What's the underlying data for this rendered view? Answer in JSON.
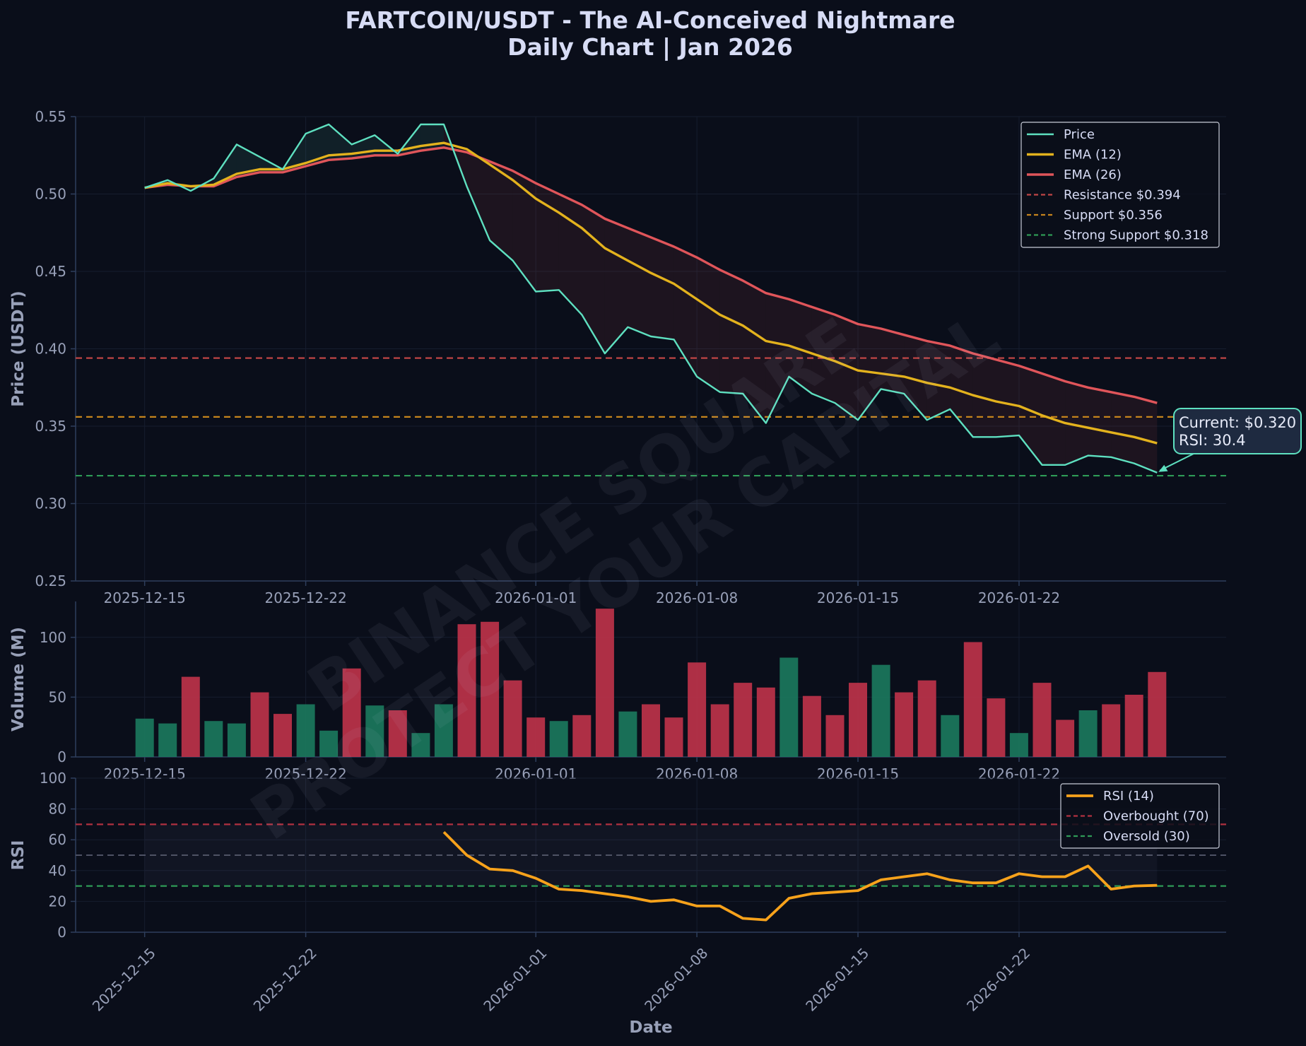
{
  "title_line1": "FARTCOIN/USDT - The AI-Conceived Nightmare",
  "title_line2": "Daily Chart | Jan 2026",
  "watermark_line1": "BINANCE SQUARE",
  "watermark_line2": "PROTECT YOUR CAPITAL",
  "colors": {
    "background": "#0a0e1a",
    "axis": "#2e3e5c",
    "grid": "#161d2e",
    "text": "#d7dcf5",
    "tick": "#98a0b8",
    "price": "#5ee0c0",
    "ema12": "#e3b21d",
    "ema26": "#e0555a",
    "resistance": "#c04545",
    "support": "#c5841c",
    "strong_support": "#2e9a56",
    "volume_up": "#1b7a5e",
    "volume_down": "#c0334a",
    "rsi": "#f7a21b",
    "overbought": "#b03040",
    "oversold": "#2e9a56",
    "midline": "#4e5264",
    "annotation_bg": "#1e2a40"
  },
  "chart_data": [
    {
      "type": "line",
      "panel": "price",
      "ylabel": "Price (USDT)",
      "ylim": [
        0.25,
        0.55
      ],
      "yticks": [
        0.25,
        0.3,
        0.35,
        0.4,
        0.45,
        0.5,
        0.55
      ],
      "ytick_labels": [
        "0.25",
        "0.30",
        "0.35",
        "0.40",
        "0.45",
        "0.50",
        "0.55"
      ],
      "x_start": "2025-12-15",
      "x_end": "2026-01-28",
      "xlim": [
        "2025-12-12",
        "2026-01-31"
      ],
      "xticks": [
        "2025-12-15",
        "2025-12-22",
        "2026-01-01",
        "2026-01-08",
        "2026-01-15",
        "2026-01-22"
      ],
      "grid": true,
      "legend_position": "top-right",
      "series": [
        {
          "name": "Price",
          "values": [
            0.504,
            0.509,
            0.502,
            0.51,
            0.532,
            0.524,
            0.516,
            0.539,
            0.545,
            0.532,
            0.538,
            0.526,
            0.545,
            0.545,
            0.505,
            0.47,
            0.457,
            0.437,
            0.438,
            0.422,
            0.397,
            0.414,
            0.408,
            0.406,
            0.382,
            0.372,
            0.371,
            0.352,
            0.382,
            0.371,
            0.365,
            0.354,
            0.374,
            0.371,
            0.354,
            0.361,
            0.343,
            0.343,
            0.344,
            0.325,
            0.325,
            0.331,
            0.33,
            0.326,
            0.32
          ]
        },
        {
          "name": "EMA (12)",
          "values": [
            0.504,
            0.507,
            0.505,
            0.506,
            0.513,
            0.516,
            0.516,
            0.52,
            0.525,
            0.526,
            0.528,
            0.528,
            0.531,
            0.533,
            0.529,
            0.519,
            0.509,
            0.497,
            0.488,
            0.478,
            0.465,
            0.457,
            0.449,
            0.442,
            0.432,
            0.422,
            0.415,
            0.405,
            0.402,
            0.397,
            0.392,
            0.386,
            0.384,
            0.382,
            0.378,
            0.375,
            0.37,
            0.366,
            0.363,
            0.357,
            0.352,
            0.349,
            0.346,
            0.343,
            0.339
          ]
        },
        {
          "name": "EMA (26)",
          "values": [
            0.504,
            0.506,
            0.505,
            0.505,
            0.511,
            0.514,
            0.514,
            0.518,
            0.522,
            0.523,
            0.525,
            0.525,
            0.528,
            0.53,
            0.527,
            0.521,
            0.515,
            0.507,
            0.5,
            0.493,
            0.484,
            0.478,
            0.472,
            0.466,
            0.459,
            0.451,
            0.444,
            0.436,
            0.432,
            0.427,
            0.422,
            0.416,
            0.413,
            0.409,
            0.405,
            0.402,
            0.397,
            0.393,
            0.389,
            0.384,
            0.379,
            0.375,
            0.372,
            0.369,
            0.365
          ]
        }
      ],
      "levels": [
        {
          "name": "Resistance $0.394",
          "value": 0.394
        },
        {
          "name": "Support $0.356",
          "value": 0.356
        },
        {
          "name": "Strong Support $0.318",
          "value": 0.318
        }
      ],
      "annotation": {
        "line1": "Current: $0.320",
        "line2": "RSI: 30.4",
        "date": "2026-01-28",
        "value": 0.32
      }
    },
    {
      "type": "bar",
      "panel": "volume",
      "ylabel": "Volume (M)",
      "ylim": [
        0,
        130
      ],
      "yticks": [
        0,
        50,
        100
      ],
      "ytick_labels": [
        "0",
        "50",
        "100"
      ],
      "x_start": "2025-12-15",
      "xticks": [
        "2025-12-15",
        "2025-12-22",
        "2026-01-01",
        "2026-01-08",
        "2026-01-15",
        "2026-01-22"
      ],
      "values": [
        32,
        28,
        67,
        30,
        28,
        54,
        36,
        44,
        22,
        74,
        43,
        39,
        20,
        44,
        111,
        113,
        64,
        33,
        30,
        35,
        124,
        38,
        44,
        33,
        79,
        44,
        62,
        58,
        83,
        51,
        35,
        62,
        77,
        54,
        64,
        35,
        96,
        49,
        20,
        62,
        31,
        39,
        44,
        52,
        71
      ],
      "direction": [
        "up",
        "up",
        "down",
        "up",
        "up",
        "down",
        "down",
        "up",
        "up",
        "down",
        "up",
        "down",
        "up",
        "up",
        "down",
        "down",
        "down",
        "down",
        "up",
        "down",
        "down",
        "up",
        "down",
        "down",
        "down",
        "down",
        "down",
        "down",
        "up",
        "down",
        "down",
        "down",
        "up",
        "down",
        "down",
        "up",
        "down",
        "down",
        "up",
        "down",
        "down",
        "up",
        "down",
        "down",
        "down"
      ]
    },
    {
      "type": "line",
      "panel": "rsi",
      "ylabel": "RSI",
      "xlabel": "Date",
      "ylim": [
        0,
        100
      ],
      "yticks": [
        0,
        20,
        40,
        60,
        80,
        100
      ],
      "ytick_labels": [
        "0",
        "20",
        "40",
        "60",
        "80",
        "100"
      ],
      "x_start": "2025-12-28",
      "xticks": [
        "2025-12-15",
        "2025-12-22",
        "2026-01-01",
        "2026-01-08",
        "2026-01-15",
        "2026-01-22"
      ],
      "legend_position": "top-right",
      "series": [
        {
          "name": "RSI (14)",
          "values": [
            65,
            50,
            41,
            40,
            35,
            28,
            27,
            25,
            23,
            20,
            21,
            17,
            17,
            9,
            8,
            22,
            25,
            26,
            27,
            34,
            36,
            38,
            34,
            32,
            32,
            38,
            36,
            36,
            43,
            28,
            30,
            30.4
          ]
        }
      ],
      "levels": [
        {
          "name": "Overbought (70)",
          "value": 70
        },
        {
          "name": "Oversold (30)",
          "value": 30
        },
        {
          "name": "",
          "value": 50
        }
      ]
    }
  ]
}
